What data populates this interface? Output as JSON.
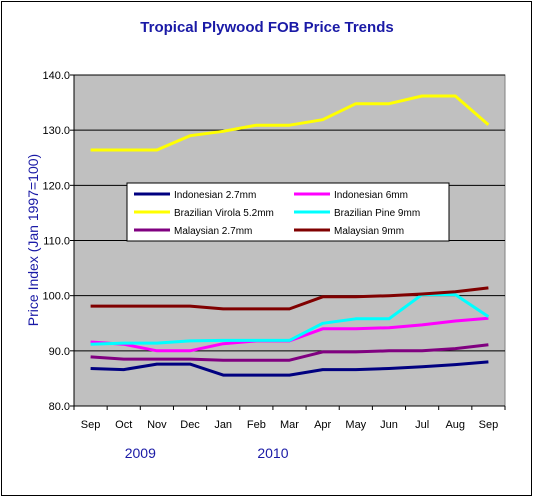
{
  "chart_data": {
    "type": "line",
    "title": "Tropical Plywood FOB Price Trends",
    "ylabel": "Price Index (Jan 1997=100)",
    "xlabel": "",
    "ylim": [
      80,
      140
    ],
    "yticks": [
      "80.0",
      "90.0",
      "100.0",
      "110.0",
      "120.0",
      "130.0",
      "140.0"
    ],
    "ytick_values": [
      80,
      90,
      100,
      110,
      120,
      130,
      140
    ],
    "categories": [
      "Sep",
      "Oct",
      "Nov",
      "Dec",
      "Jan",
      "Feb",
      "Mar",
      "Apr",
      "May",
      "Jun",
      "Jul",
      "Aug",
      "Sep"
    ],
    "year_labels": [
      {
        "text": "2009",
        "category": 1.5
      },
      {
        "text": "2010",
        "category": 5.5
      }
    ],
    "grid": "horizontal",
    "legend_position": "center-left",
    "plot_background": "#c0c0c0",
    "series": [
      {
        "name": "Indonesian 2.7mm",
        "color": "#000080",
        "values": [
          86.8,
          86.6,
          87.6,
          87.6,
          85.6,
          85.6,
          85.6,
          86.6,
          86.6,
          86.8,
          87.1,
          87.5,
          88.0
        ]
      },
      {
        "name": "Indonesian 6mm",
        "color": "#ff00ff",
        "values": [
          91.6,
          91.2,
          90.0,
          90.0,
          91.3,
          91.8,
          91.8,
          94.0,
          94.0,
          94.2,
          94.7,
          95.4,
          95.9
        ]
      },
      {
        "name": "Brazilian Virola 5.2mm",
        "color": "#ffff00",
        "values": [
          126.4,
          126.4,
          126.4,
          129.0,
          129.8,
          130.9,
          130.9,
          131.9,
          134.8,
          134.8,
          136.2,
          136.2,
          131.0
        ]
      },
      {
        "name": "Brazilian Pine 9mm",
        "color": "#00ffff",
        "values": [
          91.2,
          91.4,
          91.4,
          91.8,
          91.9,
          91.9,
          91.9,
          95.0,
          95.8,
          95.8,
          100.2,
          100.2,
          96.2
        ]
      },
      {
        "name": "Malaysian 2.7mm",
        "color": "#800080",
        "values": [
          88.9,
          88.5,
          88.5,
          88.5,
          88.3,
          88.3,
          88.3,
          89.8,
          89.8,
          90.0,
          90.0,
          90.4,
          91.1
        ]
      },
      {
        "name": "Malaysian 9mm",
        "color": "#800000",
        "values": [
          98.1,
          98.1,
          98.1,
          98.1,
          97.6,
          97.6,
          97.6,
          99.8,
          99.8,
          100.0,
          100.3,
          100.7,
          101.4
        ]
      }
    ]
  }
}
